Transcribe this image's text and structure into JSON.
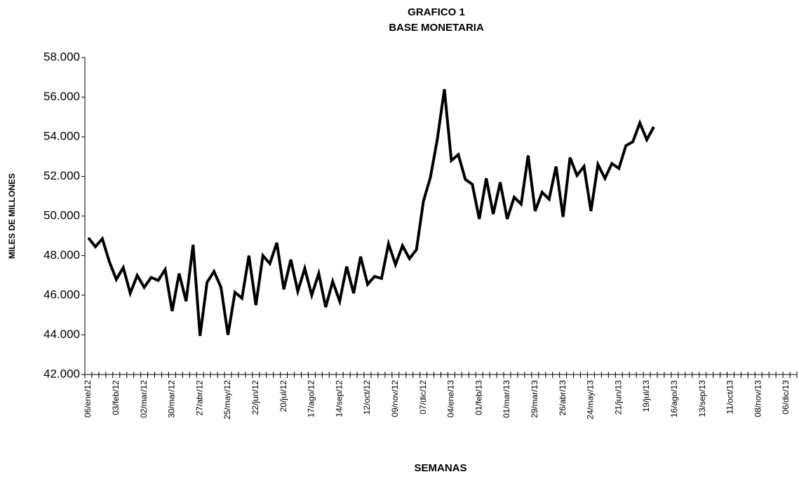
{
  "chart_data": {
    "type": "line",
    "title": "GRAFICO 1",
    "subtitle": "BASE MONETARIA",
    "y_label": "MILES DE MILLONES",
    "x_label": "SEMANAS",
    "categories": [
      "06/ene/12",
      null,
      null,
      null,
      "03/feb/12",
      null,
      null,
      null,
      "02/mar/12",
      null,
      null,
      null,
      "30/mar/12",
      null,
      null,
      null,
      "27/abr/12",
      null,
      null,
      null,
      "25/may/12",
      null,
      null,
      null,
      "22/jun/12",
      null,
      null,
      null,
      "20/jul/12",
      null,
      null,
      null,
      "17/ago/12",
      null,
      null,
      null,
      "14/sep/12",
      null,
      null,
      null,
      "12/oct/12",
      null,
      null,
      null,
      "09/nov/12",
      null,
      null,
      null,
      "07/dic/12",
      null,
      null,
      null,
      "04/ene/13",
      null,
      null,
      null,
      "01/feb/13",
      null,
      null,
      null,
      "01/mar/13",
      null,
      null,
      null,
      "29/mar/13",
      null,
      null,
      null,
      "26/abr/13",
      null,
      null,
      null,
      "24/may/13",
      null,
      null,
      null,
      "21/jun/13",
      null,
      null,
      null,
      "19/jul/13",
      null,
      null,
      null,
      "16/ago/13",
      null,
      null,
      null,
      "13/sep/13",
      null,
      null,
      null,
      "11/oct/13",
      null,
      null,
      null,
      "08/nov/13",
      null,
      null,
      null,
      "06/dic/13",
      null
    ],
    "series": [
      {
        "color": "#000000",
        "values": [
          48900,
          48450,
          48850,
          47700,
          46800,
          47400,
          46100,
          47000,
          46400,
          46900,
          46750,
          47300,
          45200,
          47100,
          45700,
          48550,
          43950,
          46650,
          47200,
          46400,
          44000,
          46150,
          45850,
          48000,
          45500,
          48000,
          47600,
          48650,
          46300,
          47800,
          46200,
          47350,
          46000,
          47100,
          45400,
          46700,
          45700,
          47450,
          46100,
          47950,
          46550,
          46950,
          46850,
          48600,
          47550,
          48500,
          47850,
          48300,
          50750,
          51950,
          53900,
          56400,
          52800,
          53100,
          51850,
          51600,
          49850,
          51900,
          50100,
          51700,
          49850,
          50950,
          50600,
          53050,
          50250,
          51200,
          50850,
          52500,
          49950,
          52950,
          52050,
          52500,
          50250,
          52600,
          51900,
          52650,
          52400,
          53550,
          53750,
          54700,
          53850,
          54500,
          null,
          null,
          null,
          null,
          null,
          null,
          null,
          null,
          null,
          null,
          null,
          null,
          null,
          null,
          null,
          null,
          null,
          null,
          null,
          null
        ]
      }
    ],
    "ylim": [
      42000,
      58000
    ],
    "yticks": [
      {
        "value": 42000,
        "label": "42.000"
      },
      {
        "value": 44000,
        "label": "44.000"
      },
      {
        "value": 46000,
        "label": "46.000"
      },
      {
        "value": 48000,
        "label": "48.000"
      },
      {
        "value": 50000,
        "label": "50.000"
      },
      {
        "value": 52000,
        "label": "52.000"
      },
      {
        "value": 54000,
        "label": "54.000"
      },
      {
        "value": 56000,
        "label": "56.000"
      },
      {
        "value": 58000,
        "label": "58.000"
      }
    ],
    "grid": false
  }
}
